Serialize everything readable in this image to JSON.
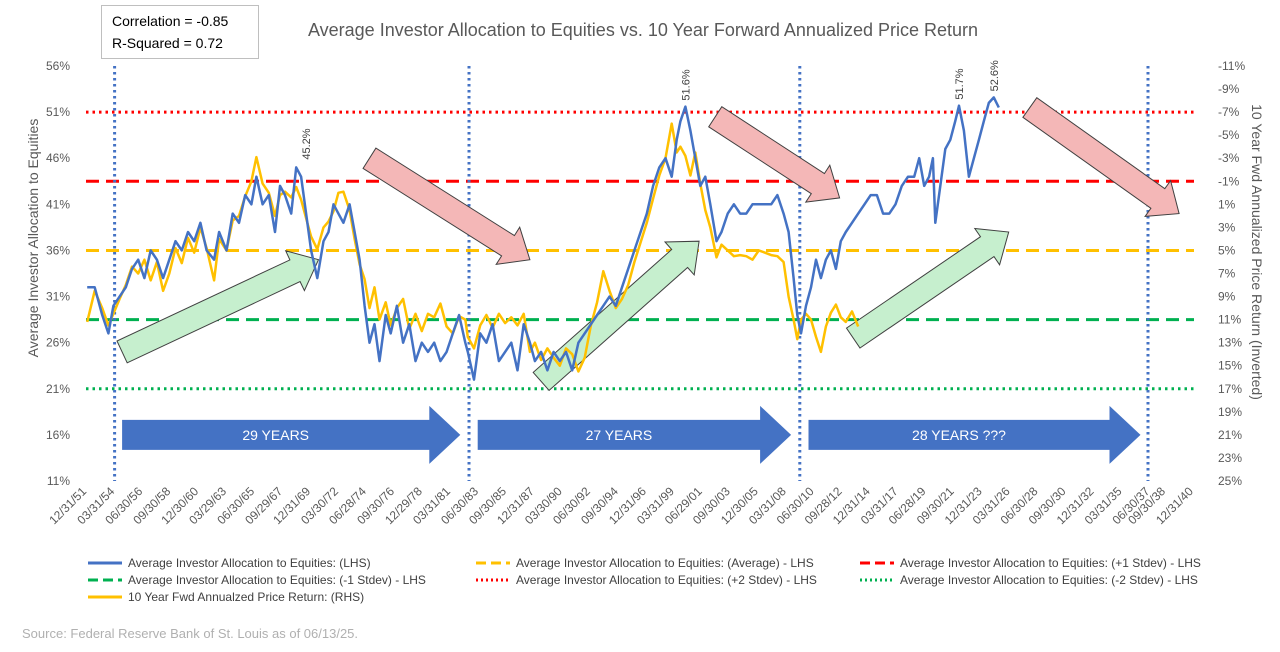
{
  "stats": {
    "correlation": "Correlation = -0.85",
    "r_squared": "R-Squared = 0.72"
  },
  "source": "Source: Federal Reserve Bank of St. Louis as of 06/13/25.",
  "colors": {
    "allocation": "#4472c4",
    "average": "#ffc000",
    "plus1": "#ff0000",
    "minus1": "#00b050",
    "plus2": "#ff0000",
    "minus2": "#00b050",
    "returns": "#ffc000",
    "arrow_up_fill": "#c6efce",
    "arrow_down_fill": "#f4b7b7",
    "cycle_arrow": "#4472c4",
    "axis_text": "#595959",
    "divider": "#4472c4"
  },
  "chart_data": {
    "type": "line",
    "title": "Average Investor Allocation to Equities vs. 10 Year Forward Annualized Price Return",
    "ylabel": "Average Investor Allocation to Equities",
    "y2label": "10 Year Fwd Annualized Price Return (Inverted)",
    "ylim": [
      11,
      56
    ],
    "y_ticks": [
      "11%",
      "16%",
      "21%",
      "26%",
      "31%",
      "36%",
      "41%",
      "46%",
      "51%",
      "56%"
    ],
    "y2lim": [
      25,
      -11
    ],
    "y2_ticks": [
      "-11%",
      "-9%",
      "-7%",
      "-5%",
      "-3%",
      "-1%",
      "1%",
      "3%",
      "5%",
      "7%",
      "9%",
      "11%",
      "13%",
      "15%",
      "17%",
      "19%",
      "21%",
      "23%",
      "25%"
    ],
    "xlim": [
      1951.9,
      2041.0
    ],
    "x_ticks": [
      "12/31/51",
      "03/31/54",
      "06/30/56",
      "09/30/58",
      "12/30/60",
      "03/29/63",
      "06/30/65",
      "09/29/67",
      "12/31/69",
      "03/30/72",
      "06/28/74",
      "09/30/76",
      "12/29/78",
      "03/31/81",
      "06/30/83",
      "09/30/85",
      "12/31/87",
      "03/30/90",
      "06/30/92",
      "09/30/94",
      "12/31/96",
      "03/31/99",
      "06/29/01",
      "09/30/03",
      "12/30/05",
      "03/31/08",
      "06/30/10",
      "09/28/12",
      "12/31/14",
      "03/31/17",
      "06/28/19",
      "09/30/21",
      "12/31/23",
      "03/31/26",
      "06/30/28",
      "09/30/30",
      "12/31/32",
      "03/31/35",
      "06/30/37",
      "09/30/38",
      "12/31/40"
    ],
    "x_tick_years": [
      1951.99,
      1954.25,
      1956.5,
      1958.75,
      1961.0,
      1963.24,
      1965.5,
      1967.75,
      1970.0,
      1972.24,
      1974.49,
      1976.75,
      1978.99,
      1981.25,
      1983.5,
      1985.75,
      1988.0,
      1990.24,
      1992.5,
      1994.75,
      1997.0,
      1999.25,
      2001.49,
      2003.75,
      2006.0,
      2008.25,
      2010.49,
      2012.74,
      2015.0,
      2017.25,
      2019.49,
      2021.75,
      2024.0,
      2026.25,
      2028.49,
      2030.75,
      2033.0,
      2035.25,
      2037.49,
      2038.75,
      2040.99
    ],
    "series": [
      {
        "name": "Average Investor Allocation to Equities: (LHS)",
        "axis": "left",
        "x": [
          1952.0,
          1952.6,
          1953.2,
          1953.7,
          1954.1,
          1954.6,
          1955.1,
          1955.6,
          1956.1,
          1956.6,
          1957.1,
          1957.6,
          1958.1,
          1958.6,
          1959.1,
          1959.6,
          1960.1,
          1960.6,
          1961.1,
          1961.6,
          1962.2,
          1962.6,
          1963.2,
          1963.7,
          1964.2,
          1964.7,
          1965.2,
          1965.6,
          1966.1,
          1966.6,
          1967.1,
          1967.5,
          1967.9,
          1968.4,
          1968.8,
          1969.2,
          1969.6,
          1970.0,
          1970.5,
          1971.0,
          1971.4,
          1971.8,
          1972.2,
          1972.6,
          1973.1,
          1973.5,
          1973.9,
          1974.3,
          1974.7,
          1975.1,
          1975.5,
          1976.0,
          1976.4,
          1976.9,
          1977.4,
          1977.9,
          1978.4,
          1978.9,
          1979.4,
          1979.9,
          1980.4,
          1980.9,
          1981.4,
          1981.9,
          1982.4,
          1982.6,
          1983.1,
          1983.6,
          1984.1,
          1984.6,
          1985.1,
          1985.6,
          1986.1,
          1986.6,
          1987.1,
          1987.6,
          1988.0,
          1988.5,
          1989.0,
          1989.5,
          1990.0,
          1990.5,
          1991.0,
          1991.5,
          1992.0,
          1992.5,
          1993.0,
          1993.5,
          1994.0,
          1994.5,
          1995.0,
          1995.5,
          1996.0,
          1996.5,
          1997.0,
          1997.5,
          1998.0,
          1998.5,
          1999.0,
          1999.4,
          1999.7,
          2000.1,
          2000.5,
          2000.9,
          2001.3,
          2001.7,
          2002.1,
          2002.6,
          2003.0,
          2003.5,
          2004.0,
          2004.5,
          2005.0,
          2005.5,
          2006.0,
          2006.5,
          2007.0,
          2007.5,
          2008.0,
          2008.4,
          2008.8,
          2009.1,
          2009.4,
          2009.8,
          2010.2,
          2010.6,
          2011.0,
          2011.4,
          2011.8,
          2012.2,
          2012.6,
          2013.0,
          2013.5,
          2014.0,
          2014.5,
          2015.0,
          2015.5,
          2016.0,
          2016.5,
          2017.0,
          2017.5,
          2018.0,
          2018.5,
          2018.9,
          2019.3,
          2019.7,
          2020.0,
          2020.2,
          2020.6,
          2021.0,
          2021.4,
          2021.8,
          2022.1,
          2022.5,
          2022.9,
          2023.3,
          2023.7,
          2024.1,
          2024.5,
          2024.9,
          2025.3
        ],
        "values": [
          32,
          32,
          29,
          27,
          30,
          31,
          32,
          34,
          35,
          33,
          36,
          35,
          33,
          35,
          37,
          36,
          38,
          37,
          39,
          36,
          35,
          38,
          36,
          40,
          39,
          42,
          41,
          44,
          41,
          42,
          38,
          43,
          42,
          40,
          45,
          44,
          40,
          36,
          33,
          37,
          38,
          41,
          40,
          39,
          41,
          38,
          35,
          30,
          26,
          28,
          24,
          29,
          27,
          30,
          26,
          28,
          24,
          26,
          25,
          26,
          24,
          25,
          27,
          29,
          26,
          25,
          22,
          27,
          26,
          28,
          24,
          25,
          26,
          23,
          28,
          26,
          24,
          25,
          23,
          25,
          24,
          25,
          23,
          26,
          27,
          28,
          29,
          30,
          31,
          30,
          32,
          34,
          36,
          38,
          40,
          43,
          45,
          46,
          44,
          48,
          50,
          51.6,
          49,
          46,
          43,
          44,
          41,
          37,
          38,
          40,
          41,
          40,
          40,
          41,
          41,
          41,
          41,
          42,
          40,
          38,
          33,
          29,
          27,
          30,
          32,
          35,
          33,
          35,
          36,
          34,
          37,
          38,
          39,
          40,
          41,
          42,
          42,
          40,
          40,
          41,
          43,
          44,
          44,
          46,
          43,
          44,
          46,
          39,
          43,
          47,
          48,
          50,
          51.7,
          49,
          44,
          46,
          48,
          50,
          52,
          52.6,
          51.5
        ]
      },
      {
        "name": "10 Year Fwd Annualzed Price Return: (RHS)",
        "axis": "right",
        "x": [
          1952.0,
          1952.6,
          1953.2,
          1953.7,
          1954.1,
          1954.6,
          1955.1,
          1955.6,
          1956.1,
          1956.6,
          1957.1,
          1957.6,
          1958.1,
          1958.6,
          1959.1,
          1959.6,
          1960.1,
          1960.6,
          1961.1,
          1961.6,
          1962.2,
          1962.6,
          1963.2,
          1963.7,
          1964.2,
          1964.7,
          1965.2,
          1965.6,
          1966.1,
          1966.6,
          1967.1,
          1967.5,
          1967.9,
          1968.4,
          1968.8,
          1969.2,
          1969.6,
          1970.0,
          1970.5,
          1971.0,
          1971.4,
          1971.8,
          1972.2,
          1972.6,
          1973.1,
          1973.5,
          1973.9,
          1974.3,
          1974.7,
          1975.1,
          1975.5,
          1976.0,
          1976.4,
          1976.9,
          1977.4,
          1977.9,
          1978.4,
          1978.9,
          1979.4,
          1979.9,
          1980.4,
          1980.9,
          1981.4,
          1981.9,
          1982.4,
          1982.6,
          1983.1,
          1983.6,
          1984.1,
          1984.6,
          1985.1,
          1985.6,
          1986.1,
          1986.6,
          1987.1,
          1987.6,
          1988.0,
          1988.5,
          1989.0,
          1989.5,
          1990.0,
          1990.5,
          1991.0,
          1991.5,
          1992.0,
          1992.5,
          1993.0,
          1993.5,
          1994.0,
          1994.5,
          1995.0,
          1995.5,
          1996.0,
          1996.5,
          1997.0,
          1997.5,
          1998.0,
          1998.5,
          1999.0,
          1999.4,
          1999.7,
          2000.1,
          2000.5,
          2000.9,
          2001.3,
          2001.7,
          2002.1,
          2002.6,
          2003.0,
          2003.5,
          2004.0,
          2004.5,
          2005.0,
          2005.5,
          2006.0,
          2006.5,
          2007.0,
          2007.5,
          2008.0,
          2008.4,
          2008.8,
          2009.1,
          2009.4,
          2009.8,
          2010.2,
          2010.6,
          2011.0,
          2011.4,
          2011.8,
          2012.2,
          2012.6,
          2013.0,
          2013.5,
          2014.0
        ],
        "values": [
          11.2,
          8.5,
          10.0,
          11.5,
          10.5,
          9.2,
          8.0,
          6.4,
          7.0,
          5.8,
          7.6,
          6.0,
          8.5,
          7.0,
          4.8,
          6.1,
          3.9,
          5.2,
          3.0,
          4.8,
          7.6,
          4.0,
          5.0,
          2.4,
          2.0,
          0.3,
          -1.0,
          -3.1,
          -0.8,
          0.0,
          2.0,
          0.2,
          -0.1,
          0.4,
          -0.5,
          0.6,
          2.2,
          3.8,
          4.9,
          3.0,
          2.5,
          1.6,
          0.0,
          -0.1,
          1.5,
          4.0,
          6.2,
          7.5,
          10.0,
          8.2,
          11.0,
          9.5,
          11.5,
          10.0,
          9.2,
          11.8,
          10.5,
          12.0,
          10.5,
          10.8,
          9.6,
          11.6,
          12.2,
          10.7,
          11.0,
          12.5,
          13.5,
          11.5,
          10.6,
          11.7,
          10.5,
          11.3,
          10.8,
          11.5,
          10.5,
          13.8,
          13.0,
          14.5,
          13.5,
          14.3,
          15.0,
          13.5,
          14.0,
          15.5,
          14.3,
          11.5,
          9.5,
          6.8,
          8.5,
          10.0,
          9.2,
          8.0,
          6.0,
          4.3,
          2.6,
          0.5,
          -1.5,
          -3.0,
          -6.0,
          -3.5,
          -4.0,
          -3.2,
          -1.5,
          -3.5,
          -0.8,
          1.5,
          3.0,
          5.6,
          4.5,
          5.0,
          5.5,
          5.4,
          5.5,
          5.8,
          5.0,
          5.2,
          5.4,
          5.5,
          6.0,
          9.0,
          11.0,
          12.7,
          11.0,
          10.5,
          11.0,
          12.5,
          13.8,
          11.6,
          10.4,
          9.7,
          10.8,
          11.2,
          10.3,
          11.6
        ]
      }
    ],
    "reference_lines": [
      {
        "name": "Average Investor Allocation to Equities: (Average) - LHS",
        "value": 36.0,
        "style": "dashed"
      },
      {
        "name": "Average Investor Allocation to Equities: (+1 Stdev) - LHS",
        "value": 43.5,
        "style": "dashed"
      },
      {
        "name": "Average Investor Allocation to Equities: (-1 Stdev) - LHS",
        "value": 28.5,
        "style": "dashed"
      },
      {
        "name": "Average Investor Allocation to Equities: (+2 Stdev) - LHS",
        "value": 51.0,
        "style": "dotted"
      },
      {
        "name": "Average Investor Allocation to Equities: (-2 Stdev) - LHS",
        "value": 21.0,
        "style": "dotted"
      }
    ],
    "cycle_dividers": [
      1954.2,
      1982.7,
      2009.3,
      2037.3
    ],
    "cycles": [
      {
        "label": "29 YEARS",
        "x_start": 1954.8,
        "x_end": 1982.0,
        "value": 16.0
      },
      {
        "label": "27 YEARS",
        "x_start": 1983.4,
        "x_end": 2008.6,
        "value": 16.0
      },
      {
        "label": "28 YEARS ???",
        "x_start": 2010.0,
        "x_end": 2036.7,
        "value": 16.0
      }
    ],
    "trend_arrows_up": [
      {
        "from": [
          1954.8,
          25.0
        ],
        "to": [
          1970.6,
          35.0
        ]
      },
      {
        "from": [
          1988.5,
          21.8
        ],
        "to": [
          2001.2,
          37.0
        ]
      },
      {
        "from": [
          2013.6,
          26.5
        ],
        "to": [
          2026.1,
          38.0
        ]
      }
    ],
    "trend_arrows_down": [
      {
        "from": [
          1974.7,
          46.0
        ],
        "to": [
          1987.6,
          35.0
        ]
      },
      {
        "from": [
          2002.5,
          50.5
        ],
        "to": [
          2012.5,
          41.7
        ]
      },
      {
        "from": [
          2027.8,
          51.5
        ],
        "to": [
          2039.8,
          40.0
        ]
      }
    ],
    "annotations": [
      {
        "text": "45.2%",
        "x": 1969.6,
        "value": 45.2
      },
      {
        "text": "51.6%",
        "x": 2000.1,
        "value": 51.6
      },
      {
        "text": "51.7%",
        "x": 2022.1,
        "value": 51.7
      },
      {
        "text": "52.6%",
        "x": 2024.9,
        "value": 52.6
      }
    ]
  }
}
